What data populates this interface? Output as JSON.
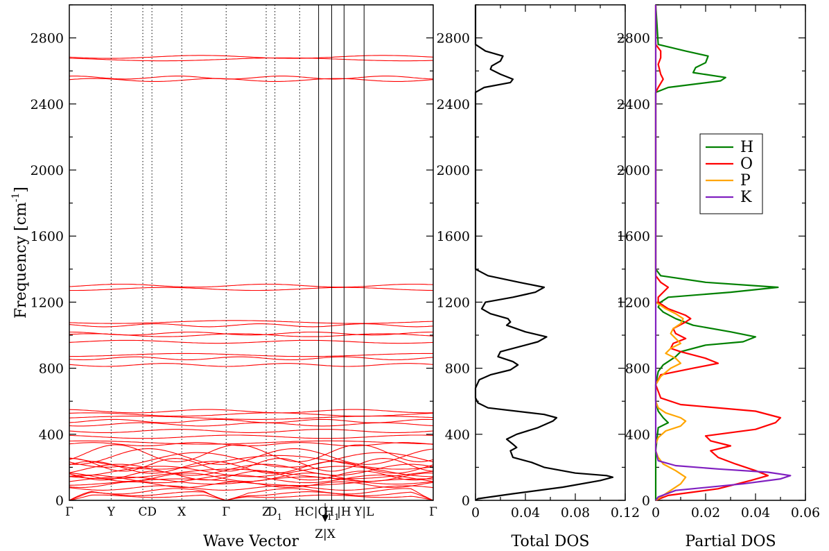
{
  "chart_data": [
    {
      "type": "line",
      "panel": "band-structure",
      "xlabel": "Wave Vector",
      "ylabel": "Frequency [cm",
      "ylabel_sup": "-1",
      "ylabel_end": "]",
      "ylim": [
        0,
        3000
      ],
      "yticks": [
        0,
        400,
        800,
        1200,
        1600,
        2000,
        2400,
        2800
      ],
      "kpoints": [
        {
          "label": "Γ",
          "sub": "",
          "pos": 0.0,
          "line": "none"
        },
        {
          "label": "Y",
          "sub": "",
          "pos": 0.115,
          "line": "dotted"
        },
        {
          "label": "C",
          "sub": "",
          "pos": 0.202,
          "line": "dotted"
        },
        {
          "label": "D",
          "sub": "",
          "pos": 0.227,
          "line": "dotted"
        },
        {
          "label": "X",
          "sub": "",
          "pos": 0.309,
          "line": "dotted"
        },
        {
          "label": "Γ",
          "sub": "",
          "pos": 0.431,
          "line": "dotted"
        },
        {
          "label": "Z",
          "sub": "",
          "pos": 0.541,
          "line": "dotted"
        },
        {
          "label": "D",
          "sub": "1",
          "pos": 0.565,
          "line": "dotted"
        },
        {
          "label": "H",
          "sub": "",
          "pos": 0.633,
          "line": "dotted"
        },
        {
          "label": "C|C",
          "sub": "1",
          "pos": 0.685,
          "line": "solid"
        },
        {
          "label": "H",
          "sub": "1",
          "pos": 0.721,
          "line": "solid"
        },
        {
          "label": "|H",
          "sub": "",
          "pos": 0.755,
          "line": "solid"
        },
        {
          "label": "Y|L",
          "sub": "",
          "pos": 0.81,
          "line": "solid"
        },
        {
          "label": "Γ",
          "sub": "",
          "pos": 1.0,
          "line": "none"
        }
      ],
      "special_label": "Z|X",
      "band_color": "#ff0000",
      "bands": [
        25,
        40,
        55,
        75,
        95,
        110,
        120,
        130,
        140,
        150,
        160,
        175,
        185,
        200,
        215,
        230,
        245,
        265,
        285,
        340,
        350,
        385,
        420,
        460,
        480,
        500,
        520,
        540,
        820,
        860,
        880,
        960,
        1000,
        1010,
        1060,
        1080,
        1280,
        1300,
        2545,
        2560,
        2670,
        2685
      ]
    },
    {
      "type": "line",
      "panel": "total-dos",
      "xlabel": "Total DOS",
      "xlim": [
        0,
        0.12
      ],
      "xticks": [
        "0",
        "0.04",
        "0.08",
        "0.12"
      ],
      "ylim": [
        0,
        3000
      ],
      "yticks": [
        0,
        400,
        800,
        1200,
        1600,
        2000,
        2400,
        2800
      ],
      "color": "#000000",
      "series": [
        {
          "y": [
            0,
            10,
            40,
            80,
            120,
            140,
            150,
            165,
            200,
            230,
            260,
            300,
            320,
            340,
            370,
            400,
            440,
            480,
            500,
            520,
            560,
            590,
            620,
            680,
            730,
            760,
            790,
            820,
            840,
            870,
            900,
            930,
            960,
            990,
            1020,
            1060,
            1080,
            1100,
            1130,
            1160,
            1200,
            1230,
            1260,
            1290,
            1320,
            1360,
            1400,
            2470,
            2500,
            2530,
            2550,
            2580,
            2610,
            2630,
            2660,
            2690,
            2720,
            2760,
            3000
          ],
          "x": [
            0,
            0.002,
            0.03,
            0.07,
            0.1,
            0.11,
            0.105,
            0.08,
            0.055,
            0.045,
            0.03,
            0.028,
            0.033,
            0.03,
            0.025,
            0.033,
            0.05,
            0.062,
            0.065,
            0.055,
            0.01,
            0.002,
            0.0,
            0.0,
            0.003,
            0.012,
            0.028,
            0.034,
            0.03,
            0.018,
            0.02,
            0.035,
            0.05,
            0.057,
            0.04,
            0.025,
            0.028,
            0.026,
            0.012,
            0.005,
            0.008,
            0.03,
            0.048,
            0.055,
            0.035,
            0.01,
            0.0,
            0.0,
            0.007,
            0.028,
            0.03,
            0.02,
            0.012,
            0.013,
            0.02,
            0.022,
            0.008,
            0.0,
            0.0
          ]
        }
      ]
    },
    {
      "type": "line",
      "panel": "partial-dos",
      "xlabel": "Partial DOS",
      "xlim": [
        0,
        0.06
      ],
      "xticks": [
        "0",
        "0.02",
        "0.04",
        "0.06"
      ],
      "ylim": [
        0,
        3000
      ],
      "yticks": [
        0,
        400,
        800,
        1200,
        1600,
        2000,
        2400,
        2800
      ],
      "legend_position": "right",
      "series": [
        {
          "name": "H",
          "color": "#008000",
          "y": [
            0,
            100,
            200,
            300,
            440,
            470,
            500,
            540,
            600,
            700,
            780,
            820,
            870,
            900,
            940,
            960,
            990,
            1020,
            1060,
            1100,
            1140,
            1170,
            1200,
            1230,
            1260,
            1290,
            1320,
            1360,
            1400,
            2470,
            2500,
            2540,
            2560,
            2590,
            2620,
            2650,
            2690,
            2720,
            2760,
            3000
          ],
          "x": [
            0,
            0,
            0,
            0,
            0.001,
            0.005,
            0.003,
            0.001,
            0,
            0,
            0.001,
            0.003,
            0.008,
            0.01,
            0.02,
            0.035,
            0.04,
            0.03,
            0.015,
            0.008,
            0.003,
            0.001,
            0.002,
            0.005,
            0.03,
            0.049,
            0.02,
            0.002,
            0,
            0,
            0.005,
            0.026,
            0.028,
            0.015,
            0.016,
            0.02,
            0.021,
            0.012,
            0.001,
            0
          ]
        },
        {
          "name": "O",
          "color": "#ff0000",
          "y": [
            0,
            30,
            70,
            120,
            150,
            180,
            220,
            260,
            300,
            330,
            360,
            390,
            430,
            470,
            500,
            540,
            580,
            620,
            700,
            760,
            800,
            830,
            860,
            900,
            920,
            950,
            980,
            1010,
            1040,
            1080,
            1100,
            1120,
            1160,
            1200,
            1230,
            1260,
            1290,
            1320,
            1360,
            2470,
            2500,
            2550,
            2580,
            2640,
            2680,
            2720,
            2760,
            3000
          ],
          "x": [
            0,
            0.005,
            0.025,
            0.038,
            0.045,
            0.04,
            0.032,
            0.025,
            0.022,
            0.03,
            0.022,
            0.02,
            0.04,
            0.048,
            0.05,
            0.04,
            0.01,
            0.002,
            0.0,
            0.002,
            0.015,
            0.025,
            0.02,
            0.01,
            0.006,
            0.007,
            0.012,
            0.008,
            0.007,
            0.012,
            0.014,
            0.012,
            0.005,
            0.001,
            0.001,
            0.003,
            0.005,
            0.002,
            0.0,
            0.0,
            0.001,
            0.003,
            0.002,
            0.001,
            0.002,
            0.002,
            0.0,
            0.0
          ]
        },
        {
          "name": "P",
          "color": "#ffa500",
          "y": [
            0,
            20,
            60,
            100,
            140,
            180,
            220,
            260,
            300,
            340,
            380,
            420,
            450,
            480,
            500,
            530,
            560,
            600,
            700,
            750,
            800,
            830,
            860,
            890,
            920,
            950,
            980,
            1010,
            1040,
            1070,
            1100,
            1130,
            1160,
            1200,
            1400,
            3000
          ],
          "x": [
            0,
            0.002,
            0.006,
            0.01,
            0.012,
            0.008,
            0.003,
            0.001,
            0.0,
            0.0,
            0.001,
            0.004,
            0.01,
            0.012,
            0.01,
            0.004,
            0.001,
            0.0,
            0.0,
            0.002,
            0.006,
            0.01,
            0.008,
            0.004,
            0.006,
            0.01,
            0.008,
            0.006,
            0.007,
            0.01,
            0.011,
            0.008,
            0.004,
            0.0,
            0.0,
            0.0
          ]
        },
        {
          "name": "K",
          "color": "#8020c0",
          "y": [
            0,
            20,
            60,
            100,
            130,
            150,
            170,
            190,
            210,
            240,
            300,
            400,
            3000
          ],
          "x": [
            0,
            0.001,
            0.008,
            0.035,
            0.05,
            0.054,
            0.045,
            0.025,
            0.008,
            0.001,
            0.0,
            0.0,
            0.0
          ]
        }
      ]
    }
  ]
}
